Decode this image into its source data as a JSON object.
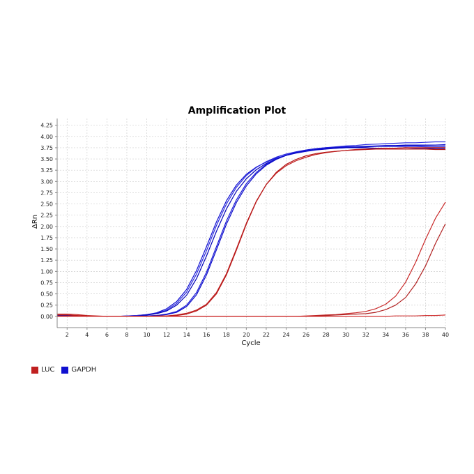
{
  "chart_data": {
    "type": "line",
    "title": "Amplification Plot",
    "xlabel": "Cycle",
    "ylabel": "ΔRn",
    "xlim": [
      1,
      40
    ],
    "ylim": [
      -0.25,
      4.4
    ],
    "xticks": [
      2,
      4,
      6,
      8,
      10,
      12,
      14,
      16,
      18,
      20,
      22,
      24,
      26,
      28,
      30,
      32,
      34,
      36,
      38,
      40
    ],
    "yticks": [
      0.0,
      0.25,
      0.5,
      0.75,
      1.0,
      1.25,
      1.5,
      1.75,
      2.0,
      2.25,
      2.5,
      2.75,
      3.0,
      3.25,
      3.5,
      3.75,
      4.0,
      4.25
    ],
    "ytick_labels": [
      "0.00",
      "0.25",
      "0.50",
      "0.75",
      "1.00",
      "1.25",
      "1.50",
      "1.75",
      "2.00",
      "2.25",
      "2.50",
      "2.75",
      "3.00",
      "3.25",
      "3.50",
      "3.75",
      "4.00",
      "4.25"
    ],
    "grid": true,
    "legend_position": "bottom-left",
    "x": [
      1,
      2,
      3,
      4,
      5,
      6,
      7,
      8,
      9,
      10,
      11,
      12,
      13,
      14,
      15,
      16,
      17,
      18,
      19,
      20,
      21,
      22,
      23,
      24,
      25,
      26,
      27,
      28,
      29,
      30,
      31,
      32,
      33,
      34,
      35,
      36,
      37,
      38,
      39,
      40
    ],
    "series": [
      {
        "name": "GAPDH",
        "color": "#1010d0",
        "values": [
          0.01,
          0.01,
          0.01,
          0.01,
          0.0,
          0.0,
          0.0,
          0.01,
          0.02,
          0.04,
          0.08,
          0.17,
          0.33,
          0.6,
          1.02,
          1.55,
          2.1,
          2.57,
          2.92,
          3.16,
          3.32,
          3.43,
          3.52,
          3.58,
          3.63,
          3.67,
          3.7,
          3.72,
          3.74,
          3.75,
          3.76,
          3.77,
          3.78,
          3.79,
          3.79,
          3.8,
          3.8,
          3.8,
          3.81,
          3.81
        ]
      },
      {
        "name": "GAPDH",
        "color": "#2a2ae0",
        "values": [
          0.0,
          0.0,
          0.0,
          0.0,
          0.0,
          0.0,
          0.0,
          0.01,
          0.02,
          0.04,
          0.07,
          0.14,
          0.29,
          0.54,
          0.94,
          1.46,
          2.02,
          2.5,
          2.87,
          3.13,
          3.31,
          3.44,
          3.54,
          3.61,
          3.66,
          3.7,
          3.73,
          3.75,
          3.77,
          3.79,
          3.8,
          3.82,
          3.83,
          3.84,
          3.85,
          3.86,
          3.86,
          3.87,
          3.88,
          3.88
        ]
      },
      {
        "name": "GAPDH",
        "color": "#0000b8",
        "values": [
          0.02,
          0.02,
          0.01,
          0.01,
          0.0,
          0.0,
          0.0,
          0.0,
          0.01,
          0.03,
          0.06,
          0.12,
          0.25,
          0.47,
          0.84,
          1.34,
          1.89,
          2.39,
          2.78,
          3.06,
          3.26,
          3.4,
          3.5,
          3.58,
          3.64,
          3.68,
          3.71,
          3.73,
          3.74,
          3.75,
          3.75,
          3.75,
          3.74,
          3.74,
          3.74,
          3.75,
          3.74,
          3.74,
          3.73,
          3.73
        ]
      },
      {
        "name": "GAPDH",
        "color": "#1a1ad8",
        "values": [
          0.0,
          0.0,
          0.0,
          0.0,
          0.0,
          0.0,
          0.0,
          0.0,
          0.01,
          0.01,
          0.02,
          0.05,
          0.11,
          0.25,
          0.53,
          0.98,
          1.55,
          2.12,
          2.59,
          2.95,
          3.2,
          3.38,
          3.5,
          3.59,
          3.65,
          3.7,
          3.73,
          3.75,
          3.76,
          3.77,
          3.77,
          3.78,
          3.78,
          3.78,
          3.78,
          3.78,
          3.78,
          3.77,
          3.77,
          3.77
        ]
      },
      {
        "name": "GAPDH",
        "color": "#0a0ac8",
        "values": [
          0.0,
          0.0,
          0.0,
          0.0,
          0.0,
          0.0,
          0.0,
          0.0,
          0.0,
          0.01,
          0.02,
          0.04,
          0.09,
          0.22,
          0.48,
          0.92,
          1.48,
          2.05,
          2.53,
          2.9,
          3.17,
          3.36,
          3.49,
          3.58,
          3.64,
          3.68,
          3.71,
          3.73,
          3.75,
          3.76,
          3.77,
          3.78,
          3.79,
          3.8,
          3.8,
          3.81,
          3.81,
          3.81,
          3.81,
          3.82
        ]
      },
      {
        "name": "LUC",
        "color": "#c02020",
        "values": [
          0.05,
          0.05,
          0.04,
          0.02,
          0.01,
          0.0,
          0.0,
          0.0,
          0.0,
          0.0,
          0.01,
          0.01,
          0.03,
          0.07,
          0.14,
          0.27,
          0.53,
          0.95,
          1.5,
          2.07,
          2.56,
          2.93,
          3.18,
          3.35,
          3.46,
          3.54,
          3.6,
          3.64,
          3.67,
          3.69,
          3.71,
          3.72,
          3.73,
          3.74,
          3.74,
          3.75,
          3.75,
          3.75,
          3.75,
          3.75
        ]
      },
      {
        "name": "LUC",
        "color": "#b81818",
        "values": [
          0.03,
          0.03,
          0.02,
          0.01,
          0.0,
          0.0,
          0.0,
          0.0,
          0.0,
          0.0,
          0.0,
          0.01,
          0.02,
          0.05,
          0.12,
          0.25,
          0.5,
          0.92,
          1.47,
          2.05,
          2.55,
          2.93,
          3.2,
          3.38,
          3.49,
          3.57,
          3.62,
          3.65,
          3.67,
          3.69,
          3.7,
          3.71,
          3.72,
          3.72,
          3.72,
          3.72,
          3.72,
          3.72,
          3.71,
          3.71
        ]
      },
      {
        "name": "LUC",
        "color": "#c82828",
        "values": [
          0.0,
          0.0,
          0.0,
          0.0,
          0.0,
          0.0,
          0.0,
          0.0,
          0.0,
          0.0,
          0.0,
          0.0,
          0.0,
          0.0,
          0.0,
          0.0,
          0.0,
          0.0,
          0.0,
          0.0,
          0.0,
          0.0,
          0.0,
          0.0,
          0.0,
          0.01,
          0.02,
          0.03,
          0.04,
          0.06,
          0.08,
          0.11,
          0.17,
          0.27,
          0.45,
          0.76,
          1.2,
          1.71,
          2.18,
          2.54
        ]
      },
      {
        "name": "LUC",
        "color": "#b02020",
        "values": [
          0.0,
          0.0,
          0.0,
          0.0,
          0.0,
          0.0,
          0.0,
          0.0,
          0.0,
          0.0,
          0.0,
          0.0,
          0.0,
          0.0,
          0.0,
          0.0,
          0.0,
          0.0,
          0.0,
          0.0,
          0.0,
          0.0,
          0.0,
          0.0,
          0.0,
          0.0,
          0.01,
          0.02,
          0.03,
          0.04,
          0.05,
          0.06,
          0.09,
          0.15,
          0.25,
          0.42,
          0.72,
          1.12,
          1.62,
          2.06
        ]
      },
      {
        "name": "LUC",
        "color": "#d03030",
        "values": [
          0.0,
          0.0,
          0.0,
          0.0,
          0.0,
          0.0,
          0.0,
          0.0,
          0.0,
          0.0,
          0.0,
          0.0,
          0.0,
          0.0,
          0.0,
          0.0,
          0.0,
          0.0,
          0.0,
          0.0,
          0.0,
          0.0,
          0.0,
          0.0,
          0.0,
          0.0,
          0.0,
          0.0,
          0.0,
          0.0,
          0.0,
          0.0,
          0.0,
          0.0,
          0.01,
          0.01,
          0.01,
          0.02,
          0.02,
          0.03
        ]
      }
    ]
  },
  "legend": [
    {
      "label": "LUC",
      "color": "#c02020"
    },
    {
      "label": "GAPDH",
      "color": "#1010d0"
    }
  ]
}
